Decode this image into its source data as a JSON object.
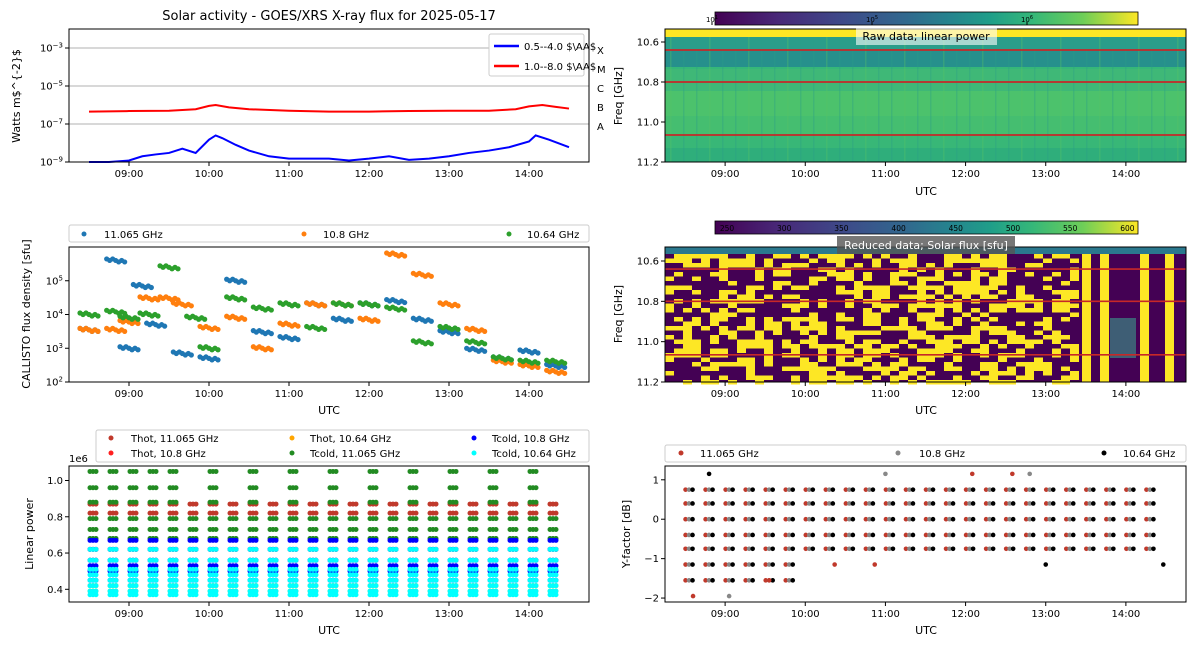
{
  "chart_data": [
    {
      "type": "line",
      "title": "Solar activity - GOES/XRS X-ray flux for 2025-05-17",
      "xlabel": "",
      "ylabel": "Watts m$^{-2}$",
      "yscale": "log",
      "ylim": [
        1e-09,
        0.01
      ],
      "yticks": [
        "10$^{-3}$",
        "10$^{-5}$",
        "10$^{-7}$",
        "10$^{-9}$"
      ],
      "xlim": [
        "08:15",
        "14:45"
      ],
      "xticks": [
        "09:00",
        "10:00",
        "11:00",
        "12:00",
        "13:00",
        "14:00"
      ],
      "flare_classes": [
        "X",
        "M",
        "C",
        "B",
        "A"
      ],
      "grid": "horizontal at class thresholds",
      "legend": "top-right",
      "series": [
        {
          "name": "0.5--4.0 $\\AA$",
          "color": "#0000ff",
          "x": [
            "08:30",
            "08:45",
            "09:00",
            "09:10",
            "09:20",
            "09:30",
            "09:40",
            "09:50",
            "10:00",
            "10:05",
            "10:10",
            "10:20",
            "10:30",
            "10:45",
            "11:00",
            "11:15",
            "11:30",
            "11:45",
            "12:00",
            "12:15",
            "12:30",
            "12:45",
            "13:00",
            "13:15",
            "13:30",
            "13:45",
            "14:00",
            "14:05",
            "14:15",
            "14:30"
          ],
          "y": [
            1e-09,
            1e-09,
            1.2e-09,
            2e-09,
            2.5e-09,
            3e-09,
            5e-09,
            3e-09,
            1.5e-08,
            2.5e-08,
            1.8e-08,
            8e-09,
            4e-09,
            2e-09,
            1.5e-09,
            1.5e-09,
            1.5e-09,
            1.2e-09,
            1.5e-09,
            2e-09,
            1.3e-09,
            1.5e-09,
            2e-09,
            3e-09,
            4e-09,
            6e-09,
            1.2e-08,
            2.5e-08,
            1.5e-08,
            6e-09
          ]
        },
        {
          "name": "1.0--8.0 $\\AA$",
          "color": "#ff0000",
          "x": [
            "08:30",
            "09:00",
            "09:30",
            "09:50",
            "10:00",
            "10:05",
            "10:15",
            "10:30",
            "11:00",
            "11:30",
            "12:00",
            "12:30",
            "13:00",
            "13:30",
            "13:50",
            "14:00",
            "14:10",
            "14:20",
            "14:30"
          ],
          "y": [
            4.5e-07,
            4.8e-07,
            5e-07,
            6e-07,
            9e-07,
            1e-06,
            7.5e-07,
            6e-07,
            5e-07,
            4.5e-07,
            4.5e-07,
            4.8e-07,
            5e-07,
            5e-07,
            6e-07,
            8.5e-07,
            1e-06,
            8e-07,
            6.5e-07
          ]
        }
      ]
    },
    {
      "type": "heatmap",
      "title": "Raw data; linear power",
      "xlabel": "UTC",
      "ylabel": "Freq [GHz]",
      "yticks": [
        "10.6",
        "10.8",
        "11.0",
        "11.2"
      ],
      "xticks": [
        "09:00",
        "10:00",
        "11:00",
        "12:00",
        "13:00",
        "14:00"
      ],
      "colorbar_scale": "log",
      "colorbar_ticks": [
        "10$^{1}$",
        "10$^{5}$",
        "10$^{6}$"
      ],
      "colormap": "viridis",
      "marked_frequencies": [
        10.64,
        10.8,
        11.065
      ]
    },
    {
      "type": "scatter",
      "title": "",
      "xlabel": "UTC",
      "ylabel": "CALLISTO flux density [sfu]",
      "yscale": "log",
      "ylim": [
        100,
        1000000
      ],
      "yticks": [
        "10$^{2}$",
        "10$^{3}$",
        "10$^{4}$",
        "10$^{5}$"
      ],
      "xticks": [
        "09:00",
        "10:00",
        "11:00",
        "12:00",
        "13:00",
        "14:00"
      ],
      "legend": "top",
      "series": [
        {
          "name": "11.065 GHz",
          "color": "#1f77b4",
          "x": [
            "08:30",
            "08:50",
            "09:00",
            "09:10",
            "09:20",
            "09:40",
            "10:00",
            "10:20",
            "10:40",
            "11:00",
            "11:20",
            "11:40",
            "12:00",
            "12:20",
            "12:40",
            "13:00",
            "13:20",
            "13:40",
            "14:00",
            "14:20"
          ],
          "y": [
            3500,
            400000,
            1000,
            70000,
            5000,
            700,
            500,
            100000,
            3000,
            2000,
            20000,
            7000,
            20000,
            25000,
            7000,
            3000,
            900,
            500,
            800,
            300
          ]
        },
        {
          "name": "10.8 GHz",
          "color": "#ff7f0e",
          "x": [
            "08:30",
            "08:50",
            "09:00",
            "09:15",
            "09:30",
            "09:40",
            "10:00",
            "10:20",
            "10:40",
            "11:00",
            "11:20",
            "11:40",
            "12:00",
            "12:20",
            "12:40",
            "13:00",
            "13:20",
            "13:40",
            "14:00",
            "14:20"
          ],
          "y": [
            3500,
            3500,
            6000,
            30000,
            30000,
            20000,
            4000,
            8000,
            1000,
            5000,
            20000,
            20000,
            7000,
            600000,
            150000,
            20000,
            3500,
            400,
            300,
            200
          ]
        },
        {
          "name": "10.64 GHz",
          "color": "#2ca02c",
          "x": [
            "08:30",
            "08:50",
            "09:00",
            "09:15",
            "09:30",
            "09:50",
            "10:00",
            "10:20",
            "10:40",
            "11:00",
            "11:20",
            "11:40",
            "12:00",
            "12:20",
            "12:40",
            "13:00",
            "13:20",
            "13:40",
            "14:00",
            "14:20"
          ],
          "y": [
            10000,
            12000,
            8000,
            10000,
            250000,
            8000,
            1000,
            30000,
            15000,
            20000,
            4000,
            20000,
            20000,
            15000,
            1500,
            4000,
            1500,
            500,
            400,
            400
          ]
        }
      ]
    },
    {
      "type": "heatmap",
      "title": "Reduced data; Solar flux [sfu]",
      "xlabel": "UTC",
      "ylabel": "Freq [GHz]",
      "yticks": [
        "10.6",
        "10.8",
        "11.0",
        "11.2"
      ],
      "xticks": [
        "09:00",
        "10:00",
        "11:00",
        "12:00",
        "13:00",
        "14:00"
      ],
      "colorbar_ticks": [
        "250",
        "300",
        "350",
        "400",
        "450",
        "500",
        "550",
        "600"
      ],
      "colormap": "viridis",
      "marked_frequencies": [
        10.64,
        10.8,
        11.065
      ]
    },
    {
      "type": "scatter",
      "title": "",
      "xlabel": "UTC",
      "ylabel": "Linear power",
      "y_multiplier": "1e6",
      "ylim": [
        0.33,
        1.08
      ],
      "yticks": [
        "0.4",
        "0.6",
        "0.8",
        "1.0"
      ],
      "xticks": [
        "09:00",
        "10:00",
        "11:00",
        "12:00",
        "13:00",
        "14:00"
      ],
      "legend": "top",
      "series": [
        {
          "name": "Thot, 11.065 GHz",
          "color": "#c0392b",
          "levels": [
            0.82,
            0.87
          ]
        },
        {
          "name": "Thot, 10.8 GHz",
          "color": "#ff2020",
          "levels": [
            0.56,
            0.62
          ]
        },
        {
          "name": "Thot, 10.64 GHz",
          "color": "#ffa500",
          "levels": [
            0.39,
            0.42
          ]
        },
        {
          "name": "Tcold, 11.065 GHz",
          "color": "#228b22",
          "levels": [
            0.68,
            0.73,
            0.79,
            0.88,
            0.96,
            1.05
          ]
        },
        {
          "name": "Tcold, 10.8 GHz",
          "color": "#0000ff",
          "levels": [
            0.45,
            0.5,
            0.53,
            0.56,
            0.62,
            0.67
          ]
        },
        {
          "name": "Tcold, 10.64 GHz",
          "color": "#00ffff",
          "levels": [
            0.37,
            0.39,
            0.42,
            0.45,
            0.48,
            0.51,
            0.56,
            0.62
          ]
        }
      ],
      "x_slots": [
        "08:33",
        "08:48",
        "09:03",
        "09:18",
        "09:33",
        "09:48",
        "10:03",
        "10:18",
        "10:33",
        "10:48",
        "11:03",
        "11:18",
        "11:33",
        "11:48",
        "12:03",
        "12:18",
        "12:33",
        "12:48",
        "13:03",
        "13:18",
        "13:33",
        "13:48",
        "14:03",
        "14:18"
      ]
    },
    {
      "type": "scatter",
      "title": "",
      "xlabel": "UTC",
      "ylabel": "Y-factor [dB]",
      "ylim": [
        -2.1,
        1.35
      ],
      "yticks": [
        "1",
        "0",
        "−1",
        "−2"
      ],
      "xticks": [
        "09:00",
        "10:00",
        "11:00",
        "12:00",
        "13:00",
        "14:00"
      ],
      "legend": "top",
      "series": [
        {
          "name": "11.065 GHz",
          "color": "#c0392b"
        },
        {
          "name": "10.8 GHz",
          "color": "#888888"
        },
        {
          "name": "10.64 GHz",
          "color": "#000000"
        }
      ],
      "levels": [
        0.75,
        0.4,
        0.0,
        -0.4,
        -0.75,
        -1.15,
        -1.55
      ],
      "x_slots": [
        "08:33",
        "08:48",
        "09:03",
        "09:18",
        "09:33",
        "09:48",
        "10:03",
        "10:18",
        "10:33",
        "10:48",
        "11:03",
        "11:18",
        "11:33",
        "11:48",
        "12:03",
        "12:18",
        "12:33",
        "12:48",
        "13:03",
        "13:18",
        "13:33",
        "13:48",
        "14:03",
        "14:18"
      ],
      "outliers": [
        {
          "x": "08:48",
          "y": 1.15,
          "s": 2
        },
        {
          "x": "09:03",
          "y": -1.95,
          "s": 1
        },
        {
          "x": "08:36",
          "y": -1.95,
          "s": 0
        },
        {
          "x": "09:33",
          "y": -1.55,
          "s": 0
        },
        {
          "x": "10:22",
          "y": -1.15,
          "s": 0
        },
        {
          "x": "10:52",
          "y": -1.15,
          "s": 0
        },
        {
          "x": "11:00",
          "y": 1.15,
          "s": 1
        },
        {
          "x": "12:05",
          "y": 1.15,
          "s": 0
        },
        {
          "x": "12:35",
          "y": 1.15,
          "s": 0
        },
        {
          "x": "12:48",
          "y": 1.15,
          "s": 1
        },
        {
          "x": "13:00",
          "y": -1.15,
          "s": 2
        },
        {
          "x": "14:28",
          "y": -1.15,
          "s": 2
        }
      ]
    }
  ]
}
